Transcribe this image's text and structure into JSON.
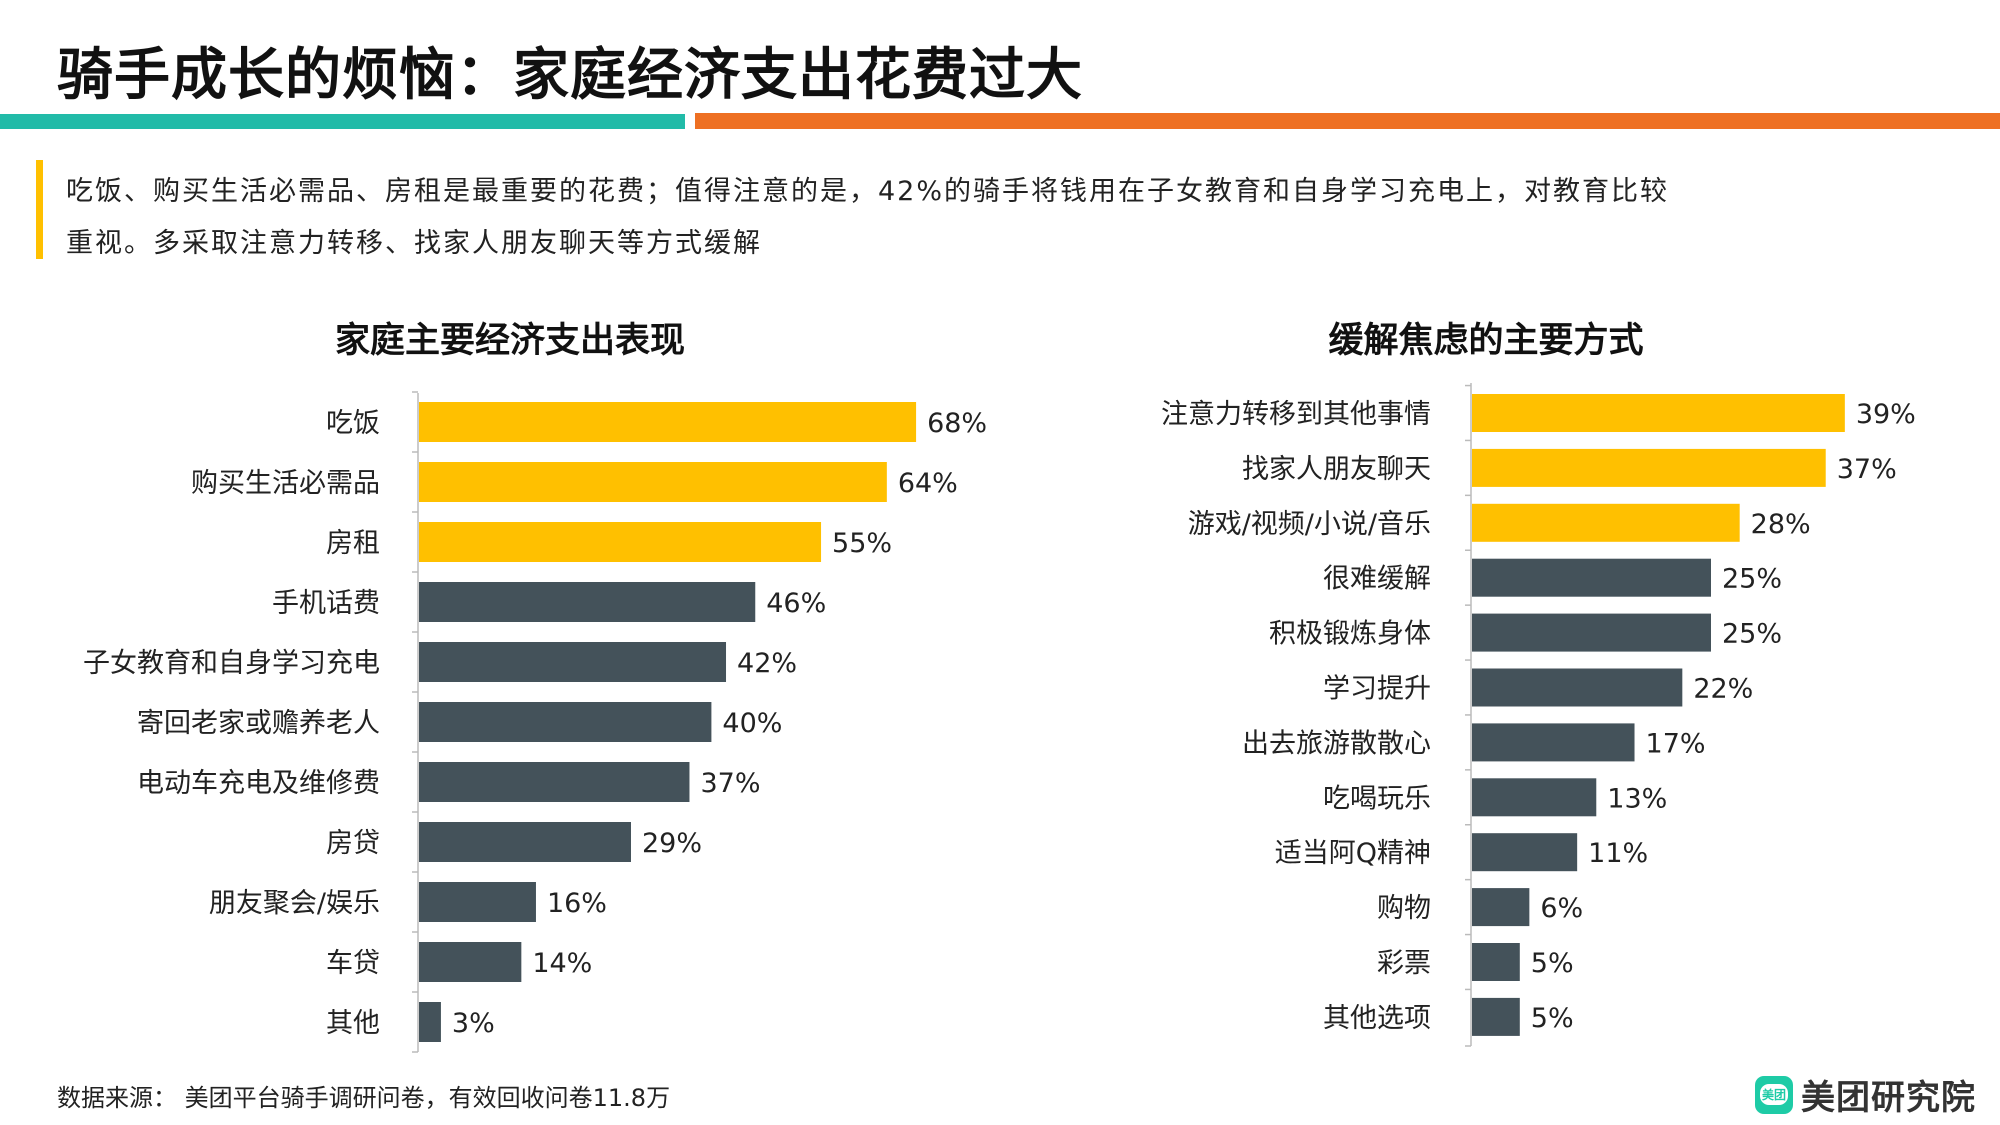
{
  "title": "骑手成长的烦恼：家庭经济支出花费过大",
  "summary": [
    "吃饭、购买生活必需品、房租是最重要的花费；值得注意的是，42%的骑手将钱用在子女教育和自身学习充电上，对教育比较",
    "重视。多采取注意力转移、找家人朋友聊天等方式缓解"
  ],
  "source": "数据来源： 美团平台骑手调研问卷，有效回收问卷11.8万",
  "logo": {
    "text": "美团研究院",
    "mark": "美团",
    "watermark": "美团研究院"
  },
  "colors": {
    "highlight": "#FFC000",
    "default": "#44525A",
    "teal": "#21BBA8",
    "orange": "#EE7023"
  },
  "chart_data": [
    {
      "type": "bar",
      "orientation": "horizontal",
      "title": "家庭主要经济支出表现",
      "categories": [
        "吃饭",
        "购买生活必需品",
        "房租",
        "手机话费",
        "子女教育和自身学习充电",
        "寄回老家或赡养老人",
        "电动车充电及维修费",
        "房贷",
        "朋友聚会/娱乐",
        "车贷",
        "其他"
      ],
      "values": [
        68,
        64,
        55,
        46,
        42,
        40,
        37,
        29,
        16,
        14,
        3
      ],
      "labels": [
        "68%",
        "64%",
        "55%",
        "46%",
        "42%",
        "40%",
        "37%",
        "29%",
        "16%",
        "14%",
        "3%"
      ],
      "highlighted": [
        true,
        true,
        true,
        false,
        false,
        false,
        false,
        false,
        false,
        false,
        false
      ],
      "unit": "%"
    },
    {
      "type": "bar",
      "orientation": "horizontal",
      "title": "缓解焦虑的主要方式",
      "categories": [
        "注意力转移到其他事情",
        "找家人朋友聊天",
        "游戏/视频/小说/音乐",
        "很难缓解",
        "积极锻炼身体",
        "学习提升",
        "出去旅游散散心",
        "吃喝玩乐",
        "适当阿Q精神",
        "购物",
        "彩票",
        "其他选项"
      ],
      "values": [
        39,
        37,
        28,
        25,
        25,
        22,
        17,
        13,
        11,
        6,
        5,
        5
      ],
      "labels": [
        "39%",
        "37%",
        "28%",
        "25%",
        "25%",
        "22%",
        "17%",
        "13%",
        "11%",
        "6%",
        "5%",
        "5%"
      ],
      "highlighted": [
        true,
        true,
        true,
        false,
        false,
        false,
        false,
        false,
        false,
        false,
        false,
        false
      ],
      "unit": "%"
    }
  ]
}
